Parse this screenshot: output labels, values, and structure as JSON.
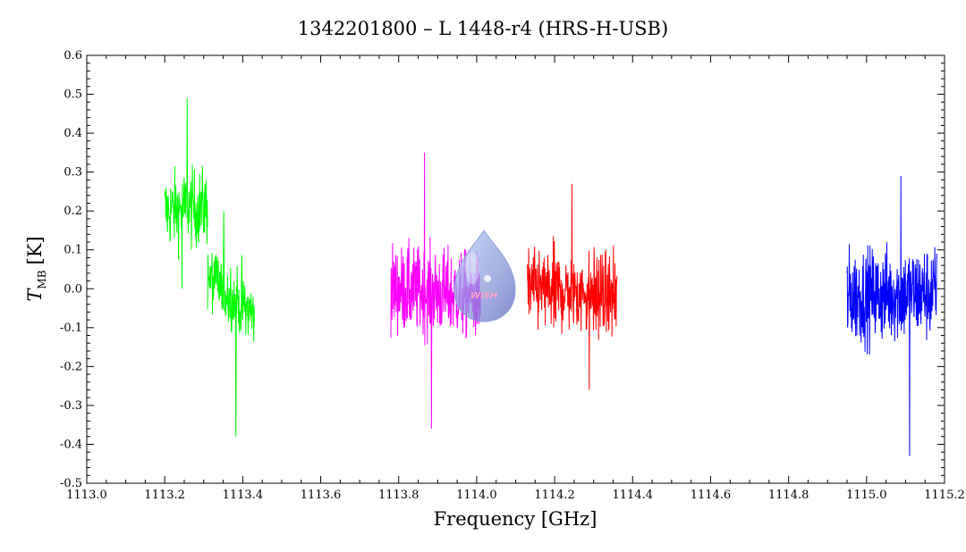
{
  "chart_data": {
    "type": "line",
    "title": "1342201800 – L 1448-r4 (HRS-H-USB)",
    "xlabel": "Frequency [GHz]",
    "ylabel_main": "T",
    "ylabel_sub": "MB",
    "ylabel_unit": "[K]",
    "xlim": [
      1113.0,
      1115.2
    ],
    "ylim": [
      -0.5,
      0.6
    ],
    "x_ticks": [
      1113.0,
      1113.2,
      1113.4,
      1113.6,
      1113.8,
      1114.0,
      1114.2,
      1114.4,
      1114.6,
      1114.8,
      1115.0,
      1115.2
    ],
    "x_tick_labels": [
      "1113.0",
      "1113.2",
      "1113.4",
      "1113.6",
      "1113.8",
      "1114.0",
      "1114.2",
      "1114.4",
      "1114.6",
      "1114.8",
      "1115.0",
      "1115.2"
    ],
    "y_ticks": [
      -0.5,
      -0.4,
      -0.3,
      -0.2,
      -0.1,
      0.0,
      0.1,
      0.2,
      0.3,
      0.4,
      0.5,
      0.6
    ],
    "y_tick_labels": [
      "-0.5",
      "-0.4",
      "-0.3",
      "-0.2",
      "-0.1",
      "0.0",
      "0.1",
      "0.2",
      "0.3",
      "0.4",
      "0.5",
      "0.6"
    ],
    "grid": false,
    "legend": "none",
    "watermark_text": "WISH",
    "series": [
      {
        "color": "#00ff00",
        "segments": [
          {
            "x_start": 1113.2,
            "x_end": 1113.31,
            "center_start": 0.2,
            "center_end": 0.21,
            "noise": 0.09,
            "max_value": 0.49,
            "min_value": 0.0
          },
          {
            "x_start": 1113.31,
            "x_end": 1113.43,
            "center_start": 0.03,
            "center_end": -0.07,
            "noise": 0.08,
            "max_value": 0.2,
            "min_value": -0.38
          }
        ],
        "noise_points": 260
      },
      {
        "color": "#ff00ff",
        "segments": [
          {
            "x_start": 1113.78,
            "x_end": 1114.01,
            "center_start": 0.0,
            "center_end": -0.02,
            "noise": 0.1,
            "max_value": 0.35,
            "min_value": -0.36
          }
        ],
        "noise_points": 320
      },
      {
        "color": "#ff0000",
        "segments": [
          {
            "x_start": 1114.13,
            "x_end": 1114.36,
            "center_start": 0.0,
            "center_end": -0.02,
            "noise": 0.095,
            "max_value": 0.27,
            "min_value": -0.26
          }
        ],
        "noise_points": 320
      },
      {
        "color": "#0000ff",
        "segments": [
          {
            "x_start": 1114.95,
            "x_end": 1115.18,
            "center_start": -0.02,
            "center_end": -0.01,
            "noise": 0.11,
            "max_value": 0.29,
            "min_value": -0.43
          }
        ],
        "noise_points": 320
      }
    ]
  }
}
